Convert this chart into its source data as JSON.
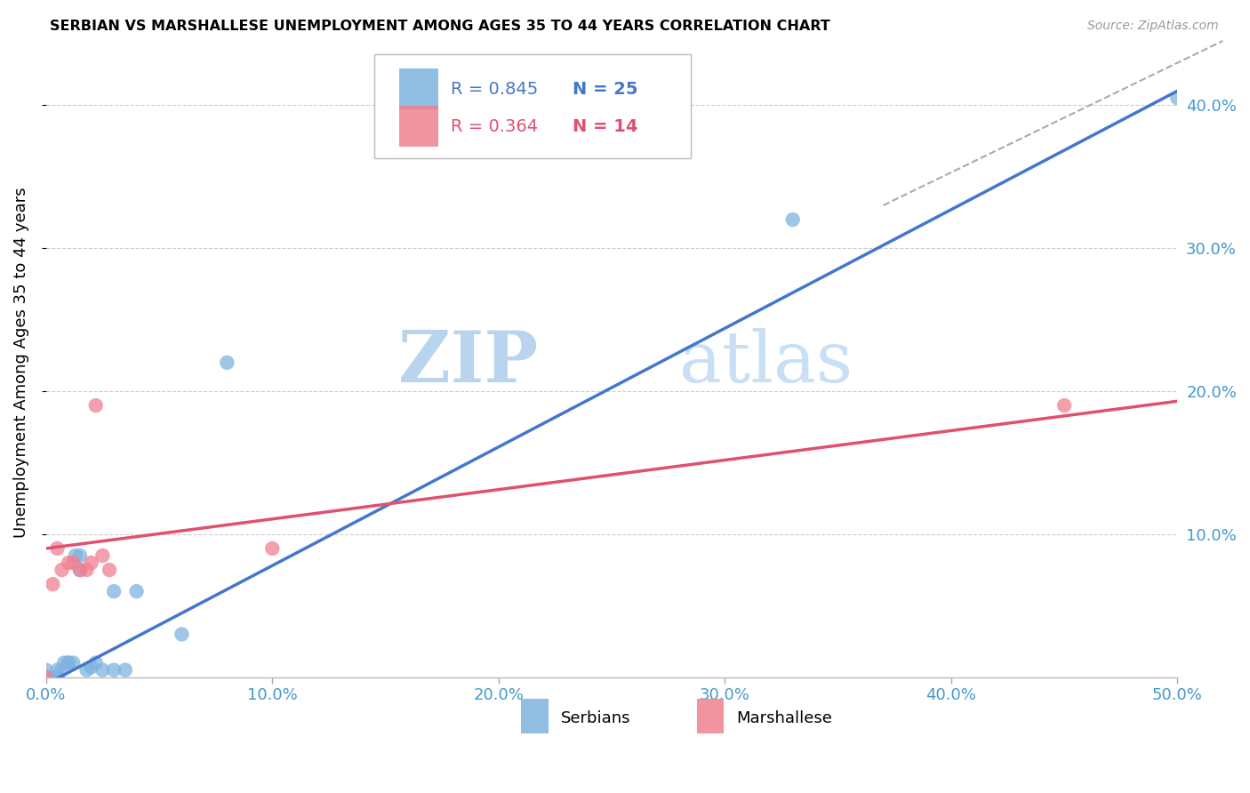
{
  "title": "SERBIAN VS MARSHALLESE UNEMPLOYMENT AMONG AGES 35 TO 44 YEARS CORRELATION CHART",
  "source": "Source: ZipAtlas.com",
  "ylabel": "Unemployment Among Ages 35 to 44 years",
  "xlim": [
    0.0,
    0.5
  ],
  "ylim": [
    0.0,
    0.44
  ],
  "xticks": [
    0.0,
    0.1,
    0.2,
    0.3,
    0.4,
    0.5
  ],
  "yticks": [
    0.1,
    0.2,
    0.3,
    0.4
  ],
  "xticklabels": [
    "0.0%",
    "10.0%",
    "20.0%",
    "30.0%",
    "40.0%",
    "50.0%"
  ],
  "yticklabels": [
    "10.0%",
    "20.0%",
    "30.0%",
    "40.0%"
  ],
  "background_color": "#ffffff",
  "grid_color": "#cccccc",
  "serbian_color": "#7fb3e0",
  "marshallese_color": "#f08090",
  "serbian_line_color": "#4477cc",
  "marshallese_line_color": "#e05070",
  "serbian_R": 0.845,
  "serbian_N": 25,
  "marshallese_R": 0.364,
  "marshallese_N": 14,
  "serbian_line": [
    [
      0.0,
      -0.005
    ],
    [
      0.5,
      0.41
    ]
  ],
  "marshallese_line": [
    [
      0.0,
      0.09
    ],
    [
      0.5,
      0.193
    ]
  ],
  "dashed_line": [
    [
      0.37,
      0.33
    ],
    [
      0.52,
      0.445
    ]
  ],
  "serbian_points": [
    [
      0.0,
      0.0
    ],
    [
      0.0,
      0.005
    ],
    [
      0.005,
      0.0
    ],
    [
      0.005,
      0.0
    ],
    [
      0.005,
      0.005
    ],
    [
      0.007,
      0.005
    ],
    [
      0.008,
      0.01
    ],
    [
      0.01,
      0.01
    ],
    [
      0.01,
      0.01
    ],
    [
      0.012,
      0.01
    ],
    [
      0.013,
      0.085
    ],
    [
      0.015,
      0.075
    ],
    [
      0.015,
      0.085
    ],
    [
      0.018,
      0.005
    ],
    [
      0.02,
      0.007
    ],
    [
      0.022,
      0.01
    ],
    [
      0.025,
      0.005
    ],
    [
      0.03,
      0.005
    ],
    [
      0.03,
      0.06
    ],
    [
      0.035,
      0.005
    ],
    [
      0.04,
      0.06
    ],
    [
      0.06,
      0.03
    ],
    [
      0.08,
      0.22
    ],
    [
      0.33,
      0.32
    ],
    [
      0.5,
      0.405
    ]
  ],
  "marshallese_points": [
    [
      0.0,
      0.0
    ],
    [
      0.003,
      0.065
    ],
    [
      0.005,
      0.09
    ],
    [
      0.007,
      0.075
    ],
    [
      0.01,
      0.08
    ],
    [
      0.012,
      0.08
    ],
    [
      0.015,
      0.075
    ],
    [
      0.018,
      0.075
    ],
    [
      0.02,
      0.08
    ],
    [
      0.022,
      0.19
    ],
    [
      0.025,
      0.085
    ],
    [
      0.028,
      0.075
    ],
    [
      0.1,
      0.09
    ],
    [
      0.45,
      0.19
    ]
  ],
  "dashed_line_color": "#aaaaaa",
  "watermark_zip": "ZIP",
  "watermark_atlas": "atlas",
  "watermark_color": "#cce0f5",
  "axis_color": "#4499cc",
  "legend_r_color_serbian": "#4477cc",
  "legend_n_color_serbian": "#4477cc",
  "legend_r_color_marshallese": "#e05070",
  "legend_n_color_marshallese": "#e05070"
}
